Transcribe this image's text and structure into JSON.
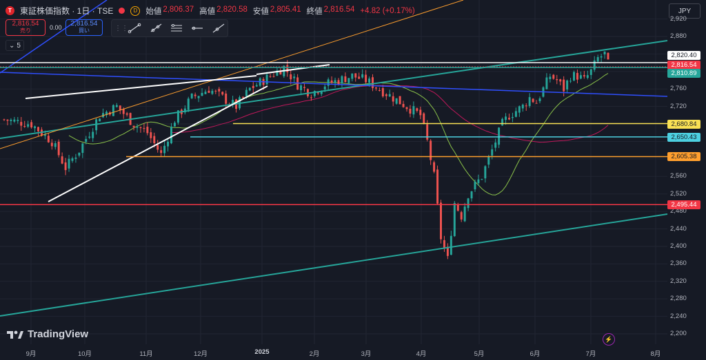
{
  "header": {
    "symbol_icon": "T",
    "title": "東証株価指数 · 1日 · TSE",
    "d_badge": "D",
    "open_label": "始値",
    "open": "2,806.37",
    "high_label": "高値",
    "high": "2,820.58",
    "low_label": "安値",
    "low": "2,805.41",
    "close_label": "終値",
    "close": "2,816.54",
    "change": "+4.82 (+0.17%)"
  },
  "trade": {
    "sell_price": "2,816.54",
    "sell_label": "売り",
    "spread": "0.00",
    "buy_price": "2,816.54",
    "buy_label": "買い"
  },
  "toolbar": {
    "icons": [
      "trend-line-icon",
      "ray-icon",
      "horizontal-lines-icon",
      "horizontal-ray-icon",
      "extended-line-icon"
    ]
  },
  "indicators": {
    "count": "5"
  },
  "currency": "JPY",
  "brand": "TradingView",
  "colors": {
    "bg": "#161a25",
    "up": "#26a69a",
    "down": "#ef5350",
    "ma_green": "#8bc34a",
    "ma_pink": "#c2185b",
    "yellow": "#f9e154",
    "cyan": "#4dd0e1",
    "orange": "#ff9f2e",
    "red": "#f23645",
    "blue": "#2f4fff",
    "teal": "#26a69a",
    "white": "#ffffff"
  },
  "chart_data": {
    "type": "candlestick",
    "ylim": [
      2200,
      2920
    ],
    "y_ticks": [
      2200,
      2240,
      2280,
      2320,
      2360,
      2400,
      2440,
      2480,
      2520,
      2560,
      2600,
      2640,
      2680,
      2720,
      2760,
      2800,
      2840,
      2880,
      2920
    ],
    "y_tick_labels": [
      "2,200",
      "2,240",
      "2,280",
      "2,320",
      "2,360",
      "2,400",
      "2,440",
      "2,480",
      "2,520",
      "2,560",
      "2,600",
      "2,640",
      "2,680",
      "2,720",
      "2,760",
      "2,800",
      "2,840",
      "2,880",
      "2,920"
    ],
    "x_ticks": [
      {
        "label": "9月",
        "bold": false
      },
      {
        "label": "10月",
        "bold": false
      },
      {
        "label": "11月",
        "bold": false
      },
      {
        "label": "12月",
        "bold": false
      },
      {
        "label": "2025",
        "bold": true
      },
      {
        "label": "2月",
        "bold": false
      },
      {
        "label": "3月",
        "bold": false
      },
      {
        "label": "4月",
        "bold": false
      },
      {
        "label": "5月",
        "bold": false
      },
      {
        "label": "6月",
        "bold": false
      },
      {
        "label": "7月",
        "bold": false
      },
      {
        "label": "8月",
        "bold": false
      }
    ],
    "price_levels": [
      {
        "value": 2820.4,
        "label": "2,820.40",
        "kind": "white"
      },
      {
        "value": 2816.54,
        "label": "2,816.54",
        "kind": "red"
      },
      {
        "value": 2810.89,
        "label": "2,810.89",
        "kind": "teal"
      },
      {
        "value": 2680.84,
        "label": "2,680.84",
        "kind": "yellow"
      },
      {
        "value": 2650.43,
        "label": "2,650.43",
        "kind": "cyan"
      },
      {
        "value": 2605.38,
        "label": "2,605.38",
        "kind": "orange"
      },
      {
        "value": 2495.44,
        "label": "2,495.44",
        "kind": "red"
      }
    ],
    "close_path": [
      [
        0,
        2690
      ],
      [
        8,
        2680
      ],
      [
        14,
        2640
      ],
      [
        18,
        2580
      ],
      [
        22,
        2620
      ],
      [
        28,
        2700
      ],
      [
        33,
        2720
      ],
      [
        38,
        2680
      ],
      [
        42,
        2660
      ],
      [
        46,
        2610
      ],
      [
        50,
        2690
      ],
      [
        55,
        2740
      ],
      [
        60,
        2760
      ],
      [
        64,
        2740
      ],
      [
        68,
        2720
      ],
      [
        72,
        2760
      ],
      [
        78,
        2790
      ],
      [
        82,
        2810
      ],
      [
        86,
        2770
      ],
      [
        90,
        2750
      ],
      [
        94,
        2770
      ],
      [
        98,
        2780
      ],
      [
        102,
        2790
      ],
      [
        106,
        2780
      ],
      [
        110,
        2760
      ],
      [
        114,
        2740
      ],
      [
        118,
        2720
      ],
      [
        122,
        2700
      ],
      [
        124,
        2640
      ],
      [
        126,
        2560
      ],
      [
        128,
        2420
      ],
      [
        130,
        2370
      ],
      [
        132,
        2500
      ],
      [
        134,
        2470
      ],
      [
        136,
        2520
      ],
      [
        138,
        2540
      ],
      [
        140,
        2560
      ],
      [
        142,
        2600
      ],
      [
        144,
        2640
      ],
      [
        146,
        2680
      ],
      [
        148,
        2700
      ],
      [
        150,
        2710
      ],
      [
        152,
        2720
      ],
      [
        154,
        2740
      ],
      [
        156,
        2730
      ],
      [
        158,
        2760
      ],
      [
        160,
        2790
      ],
      [
        162,
        2780
      ],
      [
        164,
        2760
      ],
      [
        166,
        2790
      ],
      [
        168,
        2790
      ],
      [
        170,
        2780
      ],
      [
        172,
        2800
      ],
      [
        174,
        2830
      ],
      [
        176,
        2840
      ],
      [
        177,
        2816
      ]
    ],
    "ohlc_fractions_note": "series generated along close_path"
  }
}
